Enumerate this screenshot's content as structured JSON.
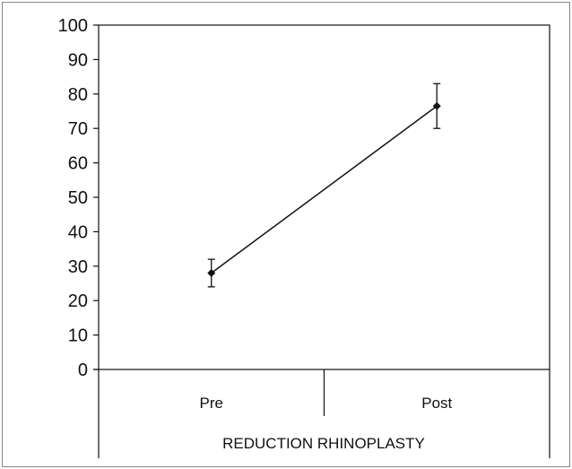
{
  "chart_data": {
    "type": "line",
    "xlabel": "REDUCTION RHINOPLASTY",
    "ylabel": "",
    "ylim": [
      0,
      100
    ],
    "yticks": [
      0,
      10,
      20,
      30,
      40,
      50,
      60,
      70,
      80,
      90,
      100
    ],
    "categories": [
      "Pre",
      "Post"
    ],
    "series": [
      {
        "values": [
          28,
          76.5
        ],
        "error_low": [
          24,
          70
        ],
        "error_high": [
          32,
          83
        ]
      }
    ],
    "grid": false,
    "legend": "none",
    "colors": {
      "line": "#111111",
      "marker": "#111111",
      "axis": "#111111",
      "border": "#888888"
    }
  }
}
